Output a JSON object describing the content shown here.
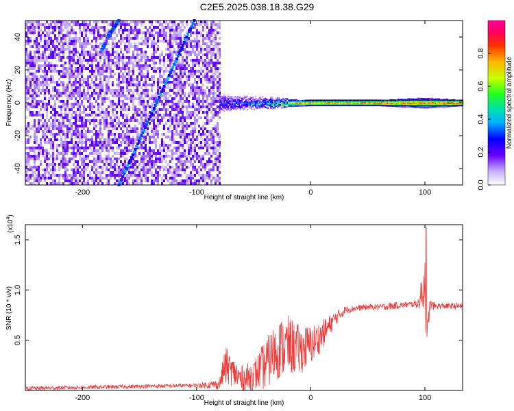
{
  "title": "C2E5.2025.038.18.38.G29",
  "chart_data": [
    {
      "type": "heatmap",
      "title": "C2E5.2025.038.18.38.G29",
      "xlabel": "Height of straight line (km)",
      "ylabel": "Frequency (Hz)",
      "xlim": [
        -250,
        133
      ],
      "ylim": [
        -50,
        50
      ],
      "x_ticks": [
        -200,
        -100,
        0,
        100
      ],
      "y_ticks": [
        -40,
        -20,
        0,
        20,
        40
      ],
      "x_tick_labels": [
        "-200",
        "-100",
        "0",
        "100"
      ],
      "y_tick_labels": [
        "-40",
        "-20",
        "0",
        "20",
        "40"
      ],
      "noise_region_x": [
        -250,
        -80
      ],
      "signal_line": {
        "x_start": -80,
        "x_end": 133,
        "frequency": 0,
        "amplitude_profile": [
          {
            "x": -80,
            "amp": 0.35,
            "spread": 6
          },
          {
            "x": -60,
            "amp": 0.4,
            "spread": 4
          },
          {
            "x": -40,
            "amp": 0.5,
            "spread": 3
          },
          {
            "x": -20,
            "amp": 0.8,
            "spread": 2
          },
          {
            "x": 0,
            "amp": 0.95,
            "spread": 1.5
          },
          {
            "x": 60,
            "amp": 1.0,
            "spread": 1.5
          },
          {
            "x": 100,
            "amp": 0.9,
            "spread": 3
          },
          {
            "x": 133,
            "amp": 1.0,
            "spread": 1.5
          }
        ]
      },
      "diagonal_streaks": [
        {
          "x1": -168,
          "y1": 50,
          "x2": -178,
          "y2": 40
        },
        {
          "x1": -180,
          "y1": 36,
          "x2": -183,
          "y2": 32
        },
        {
          "x1": -102,
          "y1": 50,
          "x2": -168,
          "y2": -50
        }
      ],
      "colorbar": {
        "label": "Normalized spectral amplitude",
        "ticks": [
          0.0,
          0.2,
          0.4,
          0.6,
          0.8
        ],
        "tick_labels": [
          "0.0",
          "0.2",
          "0.4",
          "0.6",
          "0.8"
        ],
        "range": [
          0,
          1
        ]
      }
    },
    {
      "type": "line",
      "xlabel": "Height of straight line (km)",
      "ylabel": "SNR (10 * v/v)",
      "y_multiplier": "(x10",
      "y_multiplier_exp": "4",
      "y_multiplier_close": ")",
      "xlim": [
        -250,
        133
      ],
      "ylim": [
        0,
        1.65
      ],
      "x_ticks": [
        -200,
        -100,
        0,
        100
      ],
      "y_ticks": [
        0.5,
        1.0,
        1.5
      ],
      "x_tick_labels": [
        "-200",
        "-100",
        "0",
        "100"
      ],
      "y_tick_labels": [
        "0.5",
        "1.0",
        "1.5"
      ],
      "color": "#ef3b3b",
      "series": [
        {
          "x": [
            -250,
            -200,
            -150,
            -100,
            -80,
            -75,
            -70,
            -60,
            -50,
            -40,
            -30,
            -20,
            -10,
            0,
            10,
            20,
            30,
            40,
            50,
            60,
            70,
            80,
            90,
            95,
            100,
            102,
            104,
            110,
            120,
            133
          ],
          "y": [
            0.02,
            0.03,
            0.04,
            0.05,
            0.06,
            0.25,
            0.2,
            0.1,
            0.15,
            0.25,
            0.4,
            0.45,
            0.4,
            0.45,
            0.55,
            0.7,
            0.8,
            0.82,
            0.83,
            0.83,
            0.84,
            0.85,
            0.86,
            0.87,
            1.1,
            0.4,
            0.85,
            0.84,
            0.84,
            0.84
          ],
          "noise": [
            0.02,
            0.02,
            0.02,
            0.02,
            0.05,
            0.2,
            0.15,
            0.15,
            0.15,
            0.25,
            0.3,
            0.3,
            0.25,
            0.2,
            0.15,
            0.08,
            0.04,
            0.03,
            0.03,
            0.03,
            0.04,
            0.03,
            0.03,
            0.06,
            0.35,
            0.3,
            0.06,
            0.03,
            0.03,
            0.03
          ],
          "peak_x": 101,
          "peak_y": 1.62
        }
      ]
    }
  ],
  "colors": {
    "signal": "#ef3b3b",
    "noise_base": "#8a2be2"
  }
}
